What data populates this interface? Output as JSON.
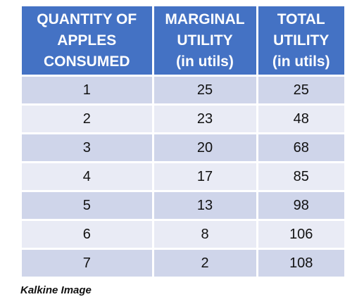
{
  "chart_data": {
    "type": "table",
    "header_lines": [
      [
        "QUANTITY OF",
        "APPLES",
        "CONSUMED"
      ],
      [
        "MARGINAL",
        "UTILITY",
        "(in utils)"
      ],
      [
        "TOTAL",
        "UTILITY",
        "(in utils)"
      ]
    ],
    "columns": [
      "QUANTITY OF APPLES CONSUMED",
      "MARGINAL UTILITY (in utils)",
      "TOTAL UTILITY (in utils)"
    ],
    "rows": [
      [
        "1",
        "25",
        "25"
      ],
      [
        "2",
        "23",
        "48"
      ],
      [
        "3",
        "20",
        "68"
      ],
      [
        "4",
        "17",
        "85"
      ],
      [
        "5",
        "13",
        "98"
      ],
      [
        "6",
        "8",
        "106"
      ],
      [
        "7",
        "2",
        "108"
      ]
    ]
  },
  "colors": {
    "header_bg": "#4472c4",
    "header_text": "#ffffff",
    "row_band_1": "#cfd5ea",
    "row_band_2": "#e9ebf5"
  },
  "caption": "Kalkine Image"
}
